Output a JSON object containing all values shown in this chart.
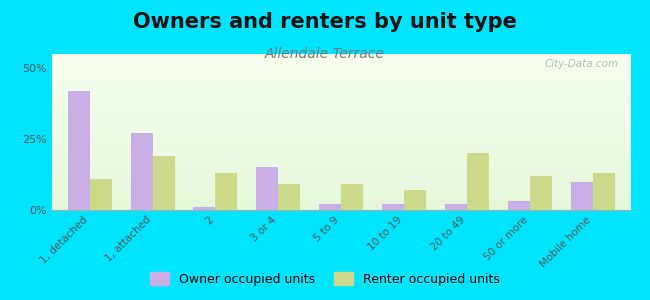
{
  "title": "Owners and renters by unit type",
  "subtitle": "Allendale Terrace",
  "categories": [
    "1, detached",
    "1, attached",
    "2",
    "3 or 4",
    "5 to 9",
    "10 to 19",
    "20 to 49",
    "50 or more",
    "Mobile home"
  ],
  "owner_values": [
    42,
    27,
    1,
    15,
    2,
    2,
    2,
    3,
    10
  ],
  "renter_values": [
    11,
    19,
    13,
    9,
    9,
    7,
    20,
    12,
    13
  ],
  "owner_color": "#c9aee5",
  "renter_color": "#cdd98a",
  "ylim": [
    0,
    55
  ],
  "yticks": [
    0,
    25,
    50
  ],
  "ytick_labels": [
    "0%",
    "25%",
    "50%"
  ],
  "outer_bg": "#00e5ff",
  "title_fontsize": 15,
  "subtitle_fontsize": 10,
  "watermark": "City-Data.com",
  "legend_owner": "Owner occupied units",
  "legend_renter": "Renter occupied units"
}
